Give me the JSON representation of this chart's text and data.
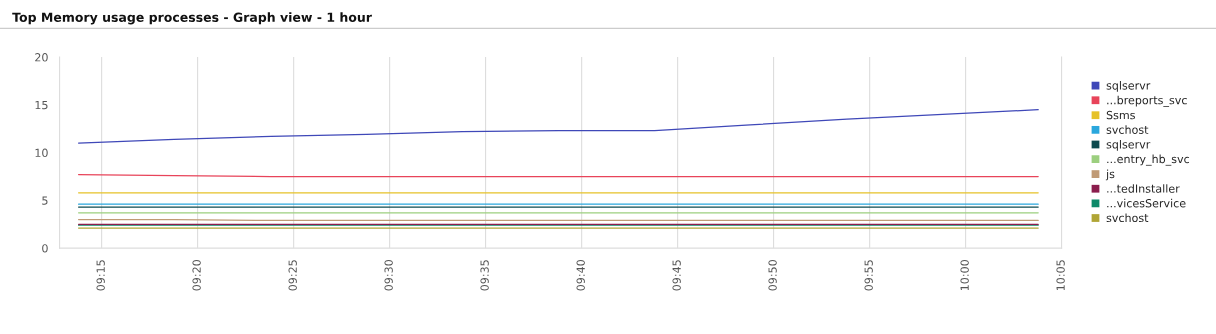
{
  "chart_data": {
    "type": "line",
    "title": "Top Memory usage processes - Graph view - 1 hour",
    "x": [
      9.23,
      9.313,
      9.397,
      9.48,
      9.563,
      9.647,
      9.73,
      9.813,
      9.897,
      9.98,
      10.063
    ],
    "series": [
      {
        "name": "sqlservr",
        "color": "#3f48b8",
        "values": [
          11.0,
          11.4,
          11.7,
          11.9,
          12.2,
          12.3,
          12.3,
          12.9,
          13.5,
          14.0,
          14.5
        ]
      },
      {
        "name": "...breports_svc",
        "color": "#e8445a",
        "values": [
          7.7,
          7.6,
          7.5,
          7.5,
          7.5,
          7.5,
          7.5,
          7.5,
          7.5,
          7.5,
          7.5
        ]
      },
      {
        "name": "Ssms",
        "color": "#e6c229",
        "values": [
          5.8,
          5.8,
          5.8,
          5.8,
          5.8,
          5.8,
          5.8,
          5.8,
          5.8,
          5.8,
          5.8
        ]
      },
      {
        "name": "svchost",
        "color": "#2aa7dd",
        "values": [
          4.6,
          4.6,
          4.6,
          4.6,
          4.6,
          4.6,
          4.6,
          4.6,
          4.6,
          4.6,
          4.6
        ]
      },
      {
        "name": "sqlservr",
        "color": "#0d4a4f",
        "values": [
          4.3,
          4.3,
          4.3,
          4.3,
          4.3,
          4.3,
          4.3,
          4.3,
          4.3,
          4.3,
          4.3
        ]
      },
      {
        "name": "...entry_hb_svc",
        "color": "#9ccf7f",
        "values": [
          3.7,
          3.7,
          3.7,
          3.7,
          3.7,
          3.7,
          3.7,
          3.7,
          3.7,
          3.7,
          3.7
        ]
      },
      {
        "name": "js",
        "color": "#c09a75",
        "values": [
          3.0,
          3.0,
          2.9,
          2.9,
          2.9,
          2.9,
          2.9,
          2.9,
          2.9,
          2.9,
          2.9
        ]
      },
      {
        "name": "...tedInstaller",
        "color": "#8b1e4d",
        "values": [
          2.5,
          2.5,
          2.5,
          2.5,
          2.5,
          2.5,
          2.5,
          2.5,
          2.5,
          2.5,
          2.5
        ]
      },
      {
        "name": "...vicesService",
        "color": "#0e8a6a",
        "values": [
          2.4,
          2.4,
          2.4,
          2.4,
          2.4,
          2.4,
          2.4,
          2.4,
          2.4,
          2.4,
          2.4
        ]
      },
      {
        "name": "svchost",
        "color": "#b0a535",
        "values": [
          2.1,
          2.1,
          2.1,
          2.1,
          2.1,
          2.1,
          2.1,
          2.1,
          2.1,
          2.1,
          2.1
        ]
      }
    ],
    "xlim": [
      9.2135,
      10.0833
    ],
    "xticks": [
      {
        "value": 9.25,
        "label": "09:15"
      },
      {
        "value": 9.3333,
        "label": "09:20"
      },
      {
        "value": 9.4167,
        "label": "09:25"
      },
      {
        "value": 9.5,
        "label": "09:30"
      },
      {
        "value": 9.5833,
        "label": "09:35"
      },
      {
        "value": 9.6667,
        "label": "09:40"
      },
      {
        "value": 9.75,
        "label": "09:45"
      },
      {
        "value": 9.8333,
        "label": "09:50"
      },
      {
        "value": 9.9167,
        "label": "09:55"
      },
      {
        "value": 10.0,
        "label": "10:00"
      },
      {
        "value": 10.0833,
        "label": "10:05"
      }
    ],
    "ylim": [
      0,
      20
    ],
    "yticks": [
      0,
      5,
      10,
      15,
      20
    ],
    "grid": "x",
    "legend": "right",
    "marker": "none",
    "line_style": "solid"
  }
}
